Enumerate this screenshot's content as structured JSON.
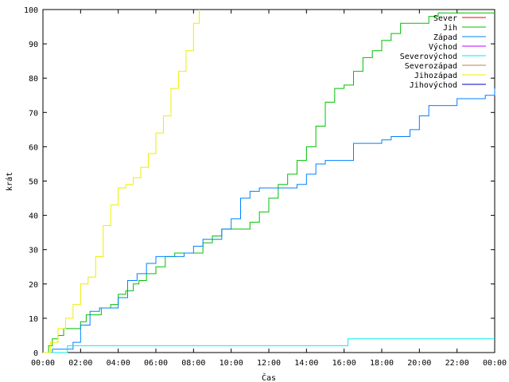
{
  "chart_data": {
    "type": "line",
    "xlabel": "Čas",
    "ylabel": "krát",
    "xlim": [
      0,
      24
    ],
    "ylim": [
      0,
      100
    ],
    "x_ticks": [
      {
        "value": 0,
        "label": "00:00"
      },
      {
        "value": 2,
        "label": "02:00"
      },
      {
        "value": 4,
        "label": "04:00"
      },
      {
        "value": 6,
        "label": "06:00"
      },
      {
        "value": 8,
        "label": "08:00"
      },
      {
        "value": 10,
        "label": "10:00"
      },
      {
        "value": 12,
        "label": "12:00"
      },
      {
        "value": 14,
        "label": "14:00"
      },
      {
        "value": 16,
        "label": "16:00"
      },
      {
        "value": 18,
        "label": "18:00"
      },
      {
        "value": 20,
        "label": "20:00"
      },
      {
        "value": 22,
        "label": "22:00"
      },
      {
        "value": 24,
        "label": "00:00"
      }
    ],
    "y_ticks": [
      0,
      10,
      20,
      30,
      40,
      50,
      60,
      70,
      80,
      90,
      100
    ],
    "legend_position": "top-right",
    "grid": false,
    "series": [
      {
        "name": "Sever",
        "color": "#ff0000",
        "x": [],
        "y": []
      },
      {
        "name": "Jih",
        "color": "#00c000",
        "x": [
          0,
          0.3,
          0.5,
          0.8,
          1.1,
          1.5,
          2.0,
          2.3,
          2.7,
          3.1,
          3.6,
          4.0,
          4.4,
          4.8,
          5.1,
          5.5,
          6.0,
          6.5,
          7.0,
          7.5,
          8.0,
          8.5,
          9.0,
          9.5,
          10.0,
          10.5,
          11.0,
          11.5,
          12.0,
          12.5,
          13.0,
          13.5,
          14.0,
          14.5,
          15.0,
          15.5,
          16.0,
          16.5,
          17.0,
          17.5,
          18.0,
          18.5,
          19.0,
          19.5,
          20.0,
          20.5,
          21.0,
          21.5,
          22.0,
          22.5,
          23.0,
          23.5,
          24.0
        ],
        "y": [
          0,
          2,
          4,
          5,
          7,
          7,
          9,
          11,
          11,
          13,
          14,
          17,
          18,
          20,
          21,
          23,
          25,
          28,
          29,
          29,
          29,
          32,
          34,
          36,
          36,
          36,
          38,
          41,
          45,
          49,
          52,
          56,
          60,
          66,
          73,
          77,
          78,
          82,
          86,
          88,
          91,
          93,
          96,
          96,
          96,
          98,
          99,
          99,
          99,
          99,
          99,
          99,
          99
        ]
      },
      {
        "name": "Západ",
        "color": "#0080ff",
        "x": [
          0,
          0.5,
          0.8,
          1.2,
          1.6,
          2.0,
          2.5,
          3.0,
          3.5,
          4.0,
          4.5,
          5.0,
          5.5,
          6.0,
          6.5,
          7.0,
          7.5,
          8.0,
          8.5,
          9.0,
          9.5,
          10.0,
          10.5,
          11.0,
          11.5,
          12.0,
          12.5,
          13.0,
          13.5,
          14.0,
          14.5,
          15.0,
          15.5,
          16.0,
          16.5,
          17.0,
          17.5,
          18.0,
          18.5,
          19.0,
          19.5,
          20.0,
          20.5,
          21.0,
          21.5,
          22.0,
          22.5,
          23.0,
          23.5,
          24.0
        ],
        "y": [
          0,
          1,
          1,
          1,
          3,
          8,
          12,
          13,
          13,
          16,
          21,
          23,
          26,
          28,
          28,
          28,
          29,
          31,
          33,
          33,
          36,
          39,
          45,
          47,
          48,
          48,
          48,
          48,
          49,
          52,
          55,
          56,
          56,
          56,
          61,
          61,
          61,
          62,
          63,
          63,
          65,
          69,
          72,
          72,
          72,
          74,
          74,
          74,
          75,
          77
        ]
      },
      {
        "name": "Východ",
        "color": "#c000ff",
        "x": [],
        "y": []
      },
      {
        "name": "Severovýchod",
        "color": "#00eeee",
        "x": [
          0,
          0.9,
          1.3,
          2.0,
          6.0,
          10.0,
          14.0,
          16.0,
          16.2,
          18.0,
          20.0,
          22.0,
          24.0
        ],
        "y": [
          0,
          0,
          2,
          2,
          2,
          2,
          2,
          2,
          4,
          4,
          4,
          4,
          4
        ]
      },
      {
        "name": "Severozápad",
        "color": "#c08040",
        "x": [],
        "y": []
      },
      {
        "name": "Jihozápad",
        "color": "#eeee00",
        "x": [
          0,
          0.4,
          0.8,
          1.2,
          1.6,
          2.0,
          2.4,
          2.8,
          3.2,
          3.6,
          4.0,
          4.4,
          4.8,
          5.2,
          5.6,
          6.0,
          6.4,
          6.8,
          7.2,
          7.6,
          8.0,
          8.3
        ],
        "y": [
          0,
          3,
          7,
          10,
          14,
          20,
          22,
          28,
          37,
          43,
          48,
          49,
          51,
          54,
          58,
          64,
          69,
          77,
          82,
          88,
          96,
          100
        ]
      },
      {
        "name": "Jihovýchod",
        "color": "#0000c0",
        "x": [],
        "y": []
      }
    ]
  }
}
